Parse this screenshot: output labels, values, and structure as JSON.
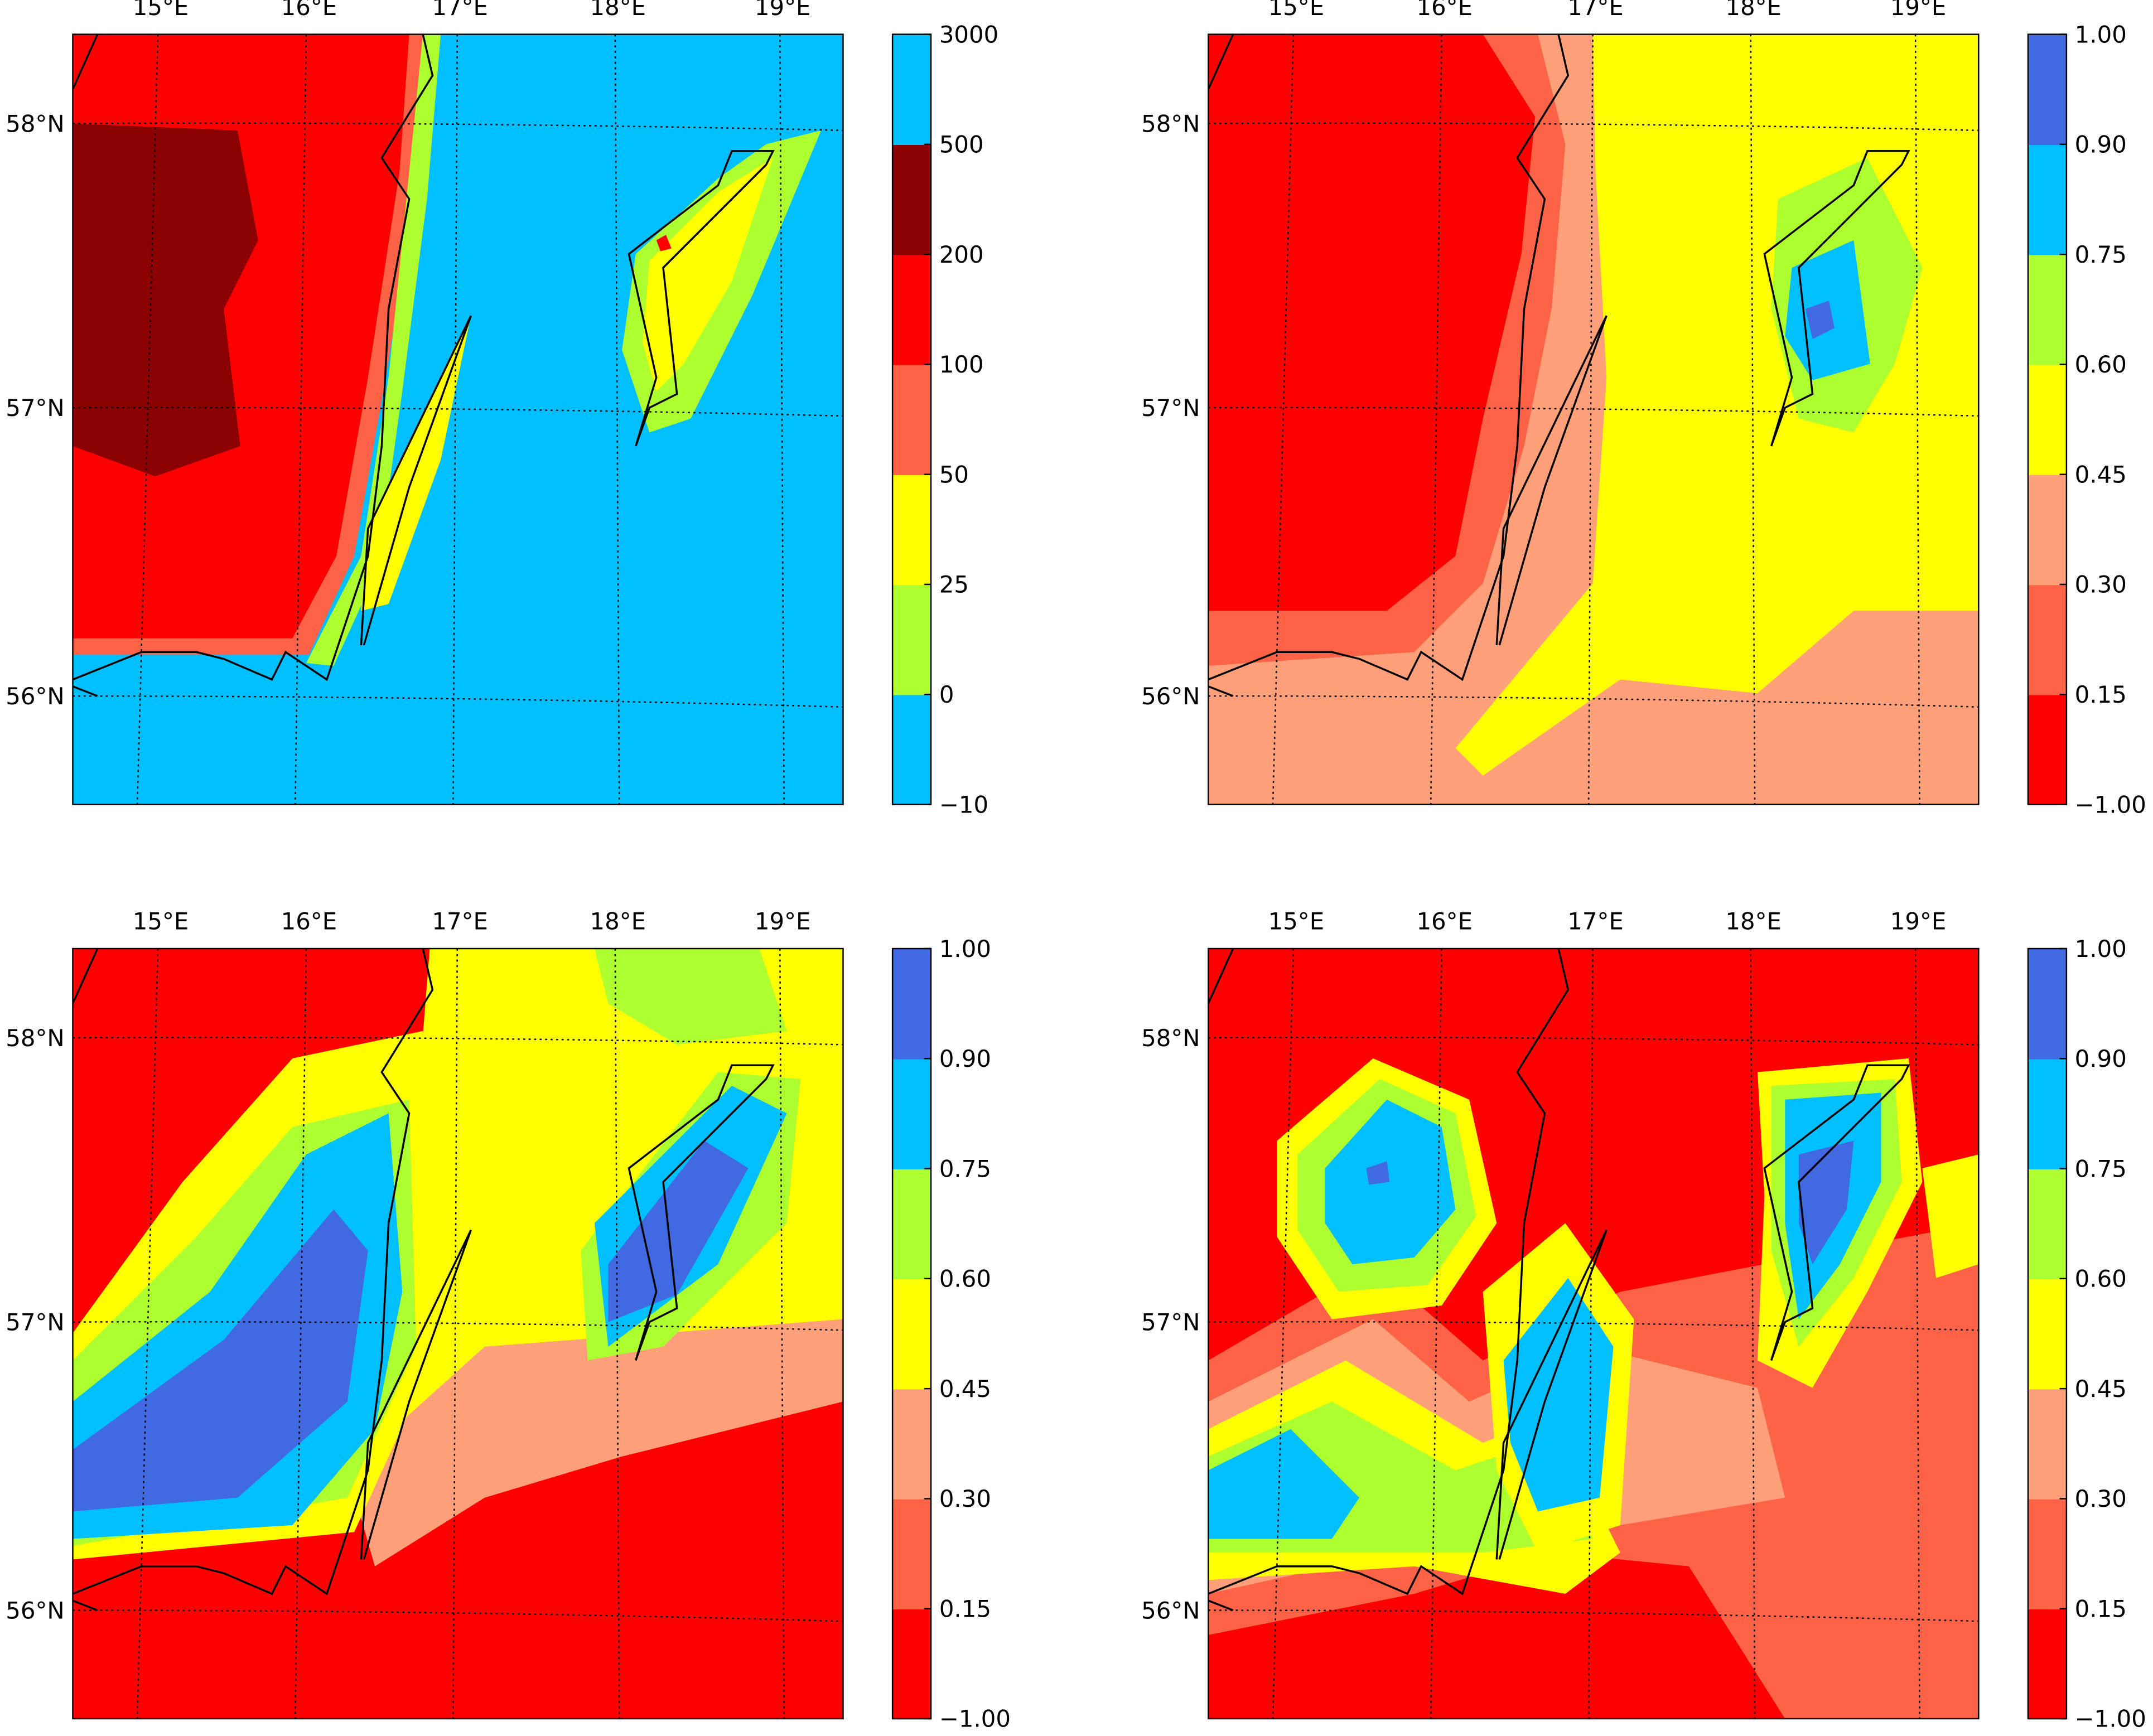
{
  "chart_data": [
    {
      "type": "contourf",
      "lon_labels": [
        "15°E",
        "16°E",
        "17°E",
        "18°E",
        "19°E"
      ],
      "lat_labels": [
        "56°N",
        "57°N",
        "58°N"
      ],
      "colorbar": {
        "ticks": [
          {
            "value": -10,
            "label": "−10"
          },
          0,
          25,
          50,
          100,
          200,
          500,
          3000
        ],
        "colors": [
          "#00bfff",
          "#adff2f",
          "#ffff00",
          "#ff6347",
          "#ff0000",
          "#8b0000",
          "#00bfff"
        ]
      }
    },
    {
      "type": "contourf",
      "lon_labels": [
        "15°E",
        "16°E",
        "17°E",
        "18°E",
        "19°E"
      ],
      "lat_labels": [
        "56°N",
        "57°N",
        "58°N"
      ],
      "colorbar": {
        "ticks": [
          {
            "value": -1,
            "label": "−1.00"
          },
          0.15,
          {
            "value": 0.3,
            "label": "0.30"
          },
          0.45,
          {
            "value": 0.6,
            "label": "0.60"
          },
          0.75,
          {
            "value": 0.9,
            "label": "0.90"
          },
          {
            "value": 1,
            "label": "1.00"
          }
        ],
        "colors": [
          "#ff0000",
          "#ff6347",
          "#ffa07a",
          "#ffff00",
          "#adff2f",
          "#00bfff",
          "#4169e1"
        ]
      }
    },
    {
      "type": "contourf",
      "lon_labels": [
        "15°E",
        "16°E",
        "17°E",
        "18°E",
        "19°E"
      ],
      "lat_labels": [
        "56°N",
        "57°N",
        "58°N"
      ],
      "colorbar": {
        "ticks": [
          {
            "value": -1,
            "label": "−1.00"
          },
          0.15,
          {
            "value": 0.3,
            "label": "0.30"
          },
          0.45,
          {
            "value": 0.6,
            "label": "0.60"
          },
          0.75,
          {
            "value": 0.9,
            "label": "0.90"
          },
          {
            "value": 1,
            "label": "1.00"
          }
        ],
        "colors": [
          "#ff0000",
          "#ff6347",
          "#ffa07a",
          "#ffff00",
          "#adff2f",
          "#00bfff",
          "#4169e1"
        ]
      }
    },
    {
      "type": "contourf",
      "lon_labels": [
        "15°E",
        "16°E",
        "17°E",
        "18°E",
        "19°E"
      ],
      "lat_labels": [
        "56°N",
        "57°N",
        "58°N"
      ],
      "colorbar": {
        "ticks": [
          {
            "value": -1,
            "label": "−1.00"
          },
          0.15,
          {
            "value": 0.3,
            "label": "0.30"
          },
          0.45,
          {
            "value": 0.6,
            "label": "0.60"
          },
          0.75,
          {
            "value": 0.9,
            "label": "0.90"
          },
          {
            "value": 1,
            "label": "1.00"
          }
        ],
        "colors": [
          "#ff0000",
          "#ff6347",
          "#ffa07a",
          "#ffff00",
          "#adff2f",
          "#00bfff",
          "#4169e1"
        ]
      }
    }
  ]
}
